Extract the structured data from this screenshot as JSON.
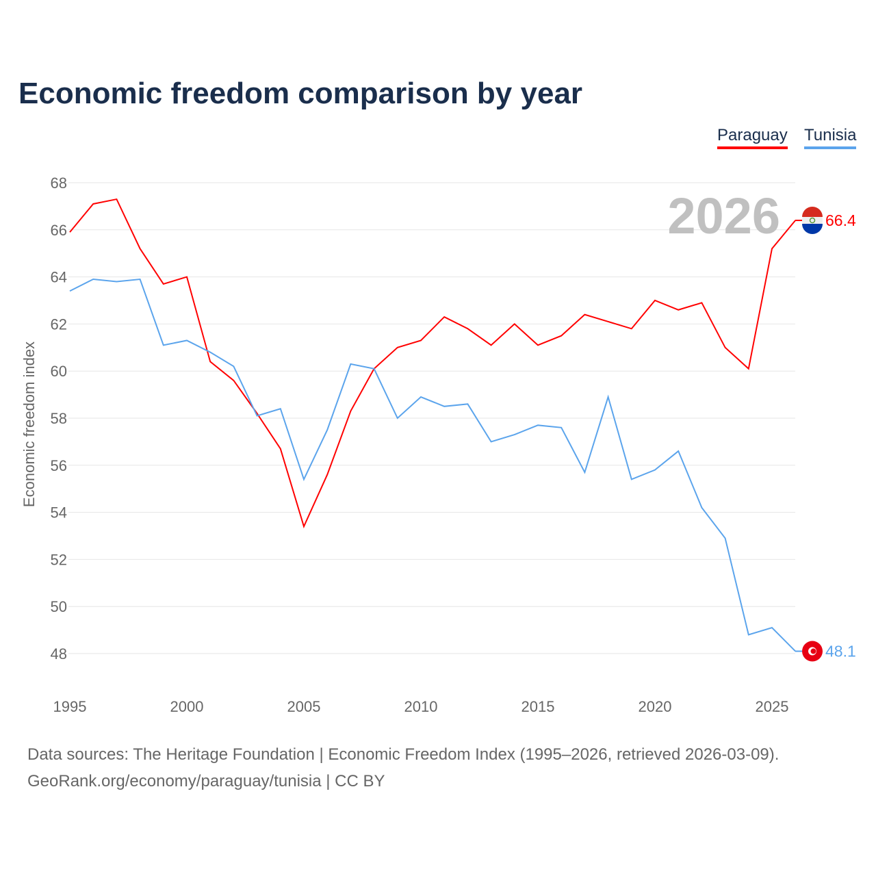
{
  "chart_data": {
    "type": "line",
    "title": "Economic freedom comparison by year",
    "xlabel": "",
    "ylabel": "Economic freedom index",
    "x": [
      1995,
      1996,
      1997,
      1998,
      1999,
      2000,
      2001,
      2002,
      2003,
      2004,
      2005,
      2006,
      2007,
      2008,
      2009,
      2010,
      2011,
      2012,
      2013,
      2014,
      2015,
      2016,
      2017,
      2018,
      2019,
      2020,
      2021,
      2022,
      2023,
      2024,
      2025,
      2026
    ],
    "xlim": [
      1995,
      2026
    ],
    "ylim": [
      48,
      68
    ],
    "xticks": [
      "1995",
      "2000",
      "2005",
      "2010",
      "2015",
      "2020",
      "2025"
    ],
    "yticks": [
      "48",
      "50",
      "52",
      "54",
      "56",
      "58",
      "60",
      "62",
      "64",
      "66",
      "68"
    ],
    "grid": true,
    "legend": "top-right",
    "year_label": "2026",
    "series": [
      {
        "name": "Paraguay",
        "color": "#ff0000",
        "end_label": "66.4",
        "values": [
          65.9,
          67.1,
          67.3,
          65.2,
          63.7,
          64.0,
          60.4,
          59.6,
          58.2,
          56.7,
          53.4,
          55.6,
          58.3,
          60.1,
          61.0,
          61.3,
          62.3,
          61.8,
          61.1,
          62.0,
          61.1,
          61.5,
          62.4,
          62.1,
          61.8,
          63.0,
          62.6,
          62.9,
          61.0,
          60.1,
          65.2,
          66.4
        ]
      },
      {
        "name": "Tunisia",
        "color": "#5ba4ec",
        "end_label": "48.1",
        "values": [
          63.4,
          63.9,
          63.8,
          63.9,
          61.1,
          61.3,
          60.8,
          60.2,
          58.1,
          58.4,
          55.4,
          57.5,
          60.3,
          60.1,
          58.0,
          58.9,
          58.5,
          58.6,
          57.0,
          57.3,
          57.7,
          57.6,
          55.7,
          58.9,
          55.4,
          55.8,
          56.6,
          54.2,
          52.9,
          48.8,
          49.1,
          48.1
        ]
      }
    ]
  },
  "footer": {
    "line1": "Data sources: The Heritage Foundation | Economic Freedom Index (1995–2026, retrieved 2026-03-09).",
    "line2": "GeoRank.org/economy/paraguay/tunisia | CC BY"
  }
}
